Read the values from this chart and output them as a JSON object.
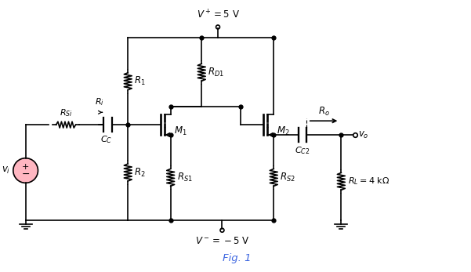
{
  "line_color": "#000000",
  "source_color": "#FFB6C1",
  "fig1_color": "#4169E1",
  "YT": 300,
  "YM": 190,
  "YB": 65,
  "XV": 30,
  "XRSi_mid": 80,
  "XCC": 120,
  "XBias": 160,
  "XM1gate": 205,
  "XM1chan": 213,
  "XM1body": 222,
  "XRD1": 260,
  "XVPS": 278,
  "XM1drain_wire": 245,
  "XM2gate": 330,
  "XM2chan": 338,
  "XM2body": 347,
  "XCC2left": 382,
  "XCC2right": 394,
  "XVO": 440,
  "XRL": 440,
  "TH": 13,
  "VS_R": 16
}
